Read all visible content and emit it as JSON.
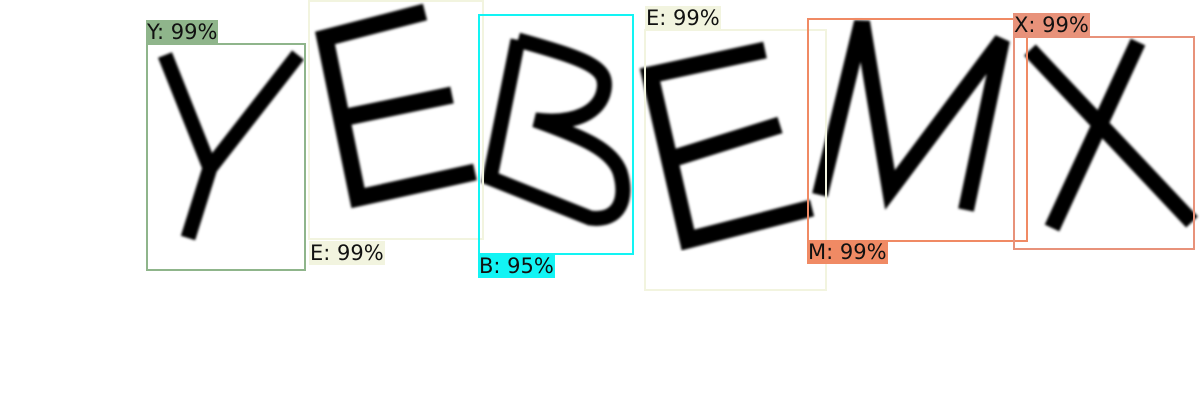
{
  "detections": [
    {
      "char": "Y",
      "label": "Y: 99%",
      "color": "#8fb58b"
    },
    {
      "char": "E",
      "label": "E: 99%",
      "color": "#f2f4df"
    },
    {
      "char": "B",
      "label": "B: 95%",
      "color": "#12f4f4"
    },
    {
      "char": "E",
      "label": "E: 99%",
      "color": "#f2f4df"
    },
    {
      "char": "M",
      "label": "M: 99%",
      "color": "#f08a64"
    },
    {
      "char": "X",
      "label": "X: 99%",
      "color": "#e8927a"
    }
  ]
}
